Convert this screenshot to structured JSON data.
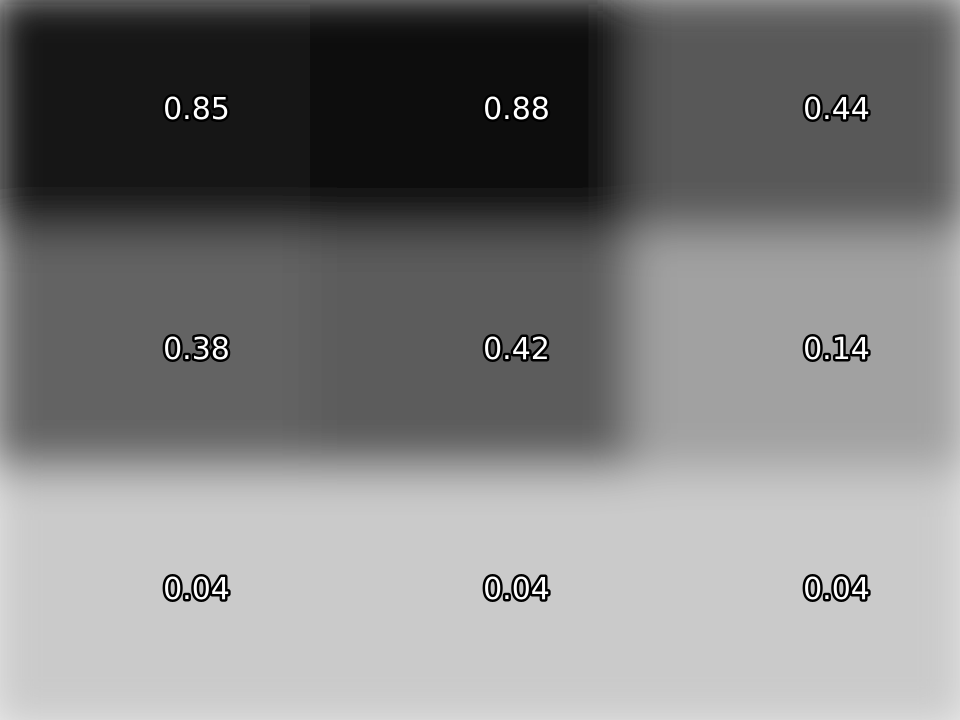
{
  "chart_data": {
    "type": "heatmap",
    "title": "",
    "xlabel": "",
    "ylabel": "",
    "grid": false,
    "legend": "none",
    "colormap": "gray_r",
    "colors": {
      "low": "#f3f3f3",
      "high": "#000000"
    },
    "value_range": [
      0,
      1
    ],
    "rows": 3,
    "cols": 3,
    "values": [
      [
        0.85,
        0.88,
        0.44
      ],
      [
        0.38,
        0.42,
        0.14
      ],
      [
        0.04,
        0.04,
        0.04
      ]
    ],
    "labels": [
      [
        "0.85",
        "0.88",
        "0.44"
      ],
      [
        "0.38",
        "0.42",
        "0.14"
      ],
      [
        "0.04",
        "0.04",
        "0.04"
      ]
    ]
  }
}
